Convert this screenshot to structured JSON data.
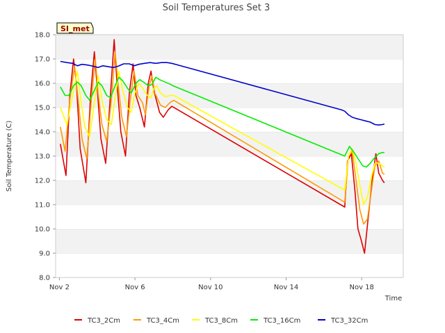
{
  "chart_data": {
    "type": "line",
    "title": "Soil Temperatures Set 3",
    "xlabel": "Time",
    "ylabel": "Soil Temperature (C)",
    "station_badge": "SI_met",
    "x_ticks": [
      "Nov 2",
      "Nov 6",
      "Nov 10",
      "Nov 14",
      "Nov 18"
    ],
    "y_ticks": [
      "8.0",
      "9.0",
      "10.0",
      "11.0",
      "12.0",
      "13.0",
      "14.0",
      "15.0",
      "16.0",
      "17.0",
      "18.0"
    ],
    "xlim": [
      1.8,
      20.2
    ],
    "ylim": [
      8,
      18
    ],
    "grid": "horizontal bands",
    "legend_position": "bottom",
    "series": [
      {
        "name": "TC3_2Cm",
        "color": "#dd0000",
        "points": [
          [
            2.05,
            13.5
          ],
          [
            2.35,
            12.2
          ],
          [
            2.55,
            15.5
          ],
          [
            2.75,
            17.0
          ],
          [
            2.9,
            16.0
          ],
          [
            3.1,
            13.3
          ],
          [
            3.4,
            11.9
          ],
          [
            3.65,
            15.5
          ],
          [
            3.85,
            17.3
          ],
          [
            4.0,
            15.8
          ],
          [
            4.2,
            13.7
          ],
          [
            4.45,
            12.7
          ],
          [
            4.7,
            15.5
          ],
          [
            4.9,
            17.8
          ],
          [
            5.05,
            16.0
          ],
          [
            5.25,
            14.0
          ],
          [
            5.5,
            13.0
          ],
          [
            5.7,
            15.6
          ],
          [
            5.9,
            16.8
          ],
          [
            6.05,
            15.5
          ],
          [
            6.25,
            15.0
          ],
          [
            6.5,
            14.2
          ],
          [
            6.7,
            16.0
          ],
          [
            6.85,
            16.5
          ],
          [
            7.0,
            15.7
          ],
          [
            7.3,
            14.8
          ],
          [
            7.5,
            14.6
          ],
          [
            7.75,
            14.9
          ],
          [
            7.95,
            15.05
          ],
          [
            17.1,
            10.9
          ],
          [
            17.25,
            12.8
          ],
          [
            17.45,
            13.1
          ],
          [
            17.65,
            11.5
          ],
          [
            17.8,
            10.0
          ],
          [
            17.95,
            9.6
          ],
          [
            18.15,
            9.0
          ],
          [
            18.35,
            10.5
          ],
          [
            18.55,
            12.0
          ],
          [
            18.75,
            13.1
          ],
          [
            18.9,
            12.3
          ],
          [
            19.1,
            12.0
          ],
          [
            19.2,
            11.9
          ]
        ]
      },
      {
        "name": "TC3_4Cm",
        "color": "#ff9900",
        "points": [
          [
            2.05,
            14.2
          ],
          [
            2.3,
            13.2
          ],
          [
            2.55,
            15.3
          ],
          [
            2.8,
            16.7
          ],
          [
            3.0,
            15.3
          ],
          [
            3.2,
            13.7
          ],
          [
            3.45,
            12.9
          ],
          [
            3.7,
            15.4
          ],
          [
            3.9,
            17.0
          ],
          [
            4.05,
            15.6
          ],
          [
            4.25,
            14.3
          ],
          [
            4.5,
            13.6
          ],
          [
            4.75,
            15.3
          ],
          [
            4.95,
            17.3
          ],
          [
            5.1,
            16.0
          ],
          [
            5.3,
            14.6
          ],
          [
            5.55,
            13.8
          ],
          [
            5.75,
            15.3
          ],
          [
            5.95,
            16.5
          ],
          [
            6.15,
            15.5
          ],
          [
            6.4,
            15.2
          ],
          [
            6.55,
            14.7
          ],
          [
            6.75,
            15.9
          ],
          [
            6.9,
            16.3
          ],
          [
            7.05,
            15.6
          ],
          [
            7.35,
            15.1
          ],
          [
            7.6,
            15.0
          ],
          [
            7.85,
            15.2
          ],
          [
            8.05,
            15.3
          ],
          [
            17.1,
            11.1
          ],
          [
            17.3,
            13.0
          ],
          [
            17.5,
            13.2
          ],
          [
            17.7,
            12.0
          ],
          [
            17.9,
            10.8
          ],
          [
            18.1,
            10.2
          ],
          [
            18.3,
            10.4
          ],
          [
            18.5,
            11.5
          ],
          [
            18.7,
            12.6
          ],
          [
            18.9,
            12.8
          ],
          [
            19.1,
            12.3
          ],
          [
            19.2,
            12.25
          ]
        ]
      },
      {
        "name": "TC3_8Cm",
        "color": "#ffff00",
        "points": [
          [
            2.05,
            15.0
          ],
          [
            2.4,
            14.3
          ],
          [
            2.7,
            15.5
          ],
          [
            2.95,
            16.5
          ],
          [
            3.15,
            15.2
          ],
          [
            3.35,
            14.2
          ],
          [
            3.6,
            13.8
          ],
          [
            3.85,
            15.2
          ],
          [
            4.05,
            16.3
          ],
          [
            4.25,
            15.3
          ],
          [
            4.5,
            14.5
          ],
          [
            4.75,
            14.3
          ],
          [
            4.95,
            15.4
          ],
          [
            5.15,
            16.5
          ],
          [
            5.35,
            15.7
          ],
          [
            5.6,
            15.0
          ],
          [
            5.8,
            14.8
          ],
          [
            6.0,
            15.6
          ],
          [
            6.2,
            16.0
          ],
          [
            6.4,
            15.8
          ],
          [
            6.65,
            15.5
          ],
          [
            6.85,
            15.4
          ],
          [
            7.0,
            15.8
          ],
          [
            7.15,
            15.9
          ],
          [
            7.35,
            15.6
          ],
          [
            7.6,
            15.45
          ],
          [
            7.9,
            15.5
          ],
          [
            8.05,
            15.5
          ],
          [
            17.1,
            11.6
          ],
          [
            17.3,
            13.0
          ],
          [
            17.5,
            13.3
          ],
          [
            17.7,
            12.7
          ],
          [
            17.9,
            11.8
          ],
          [
            18.1,
            11.0
          ],
          [
            18.3,
            11.3
          ],
          [
            18.5,
            12.1
          ],
          [
            18.7,
            12.7
          ],
          [
            18.9,
            12.7
          ],
          [
            19.1,
            12.6
          ],
          [
            19.2,
            12.55
          ]
        ]
      },
      {
        "name": "TC3_16Cm",
        "color": "#00ee00",
        "points": [
          [
            2.05,
            15.85
          ],
          [
            2.3,
            15.5
          ],
          [
            2.5,
            15.5
          ],
          [
            2.75,
            15.9
          ],
          [
            2.95,
            16.05
          ],
          [
            3.15,
            15.9
          ],
          [
            3.4,
            15.5
          ],
          [
            3.6,
            15.3
          ],
          [
            3.85,
            15.7
          ],
          [
            4.05,
            16.05
          ],
          [
            4.25,
            15.9
          ],
          [
            4.5,
            15.5
          ],
          [
            4.7,
            15.4
          ],
          [
            4.95,
            15.9
          ],
          [
            5.15,
            16.25
          ],
          [
            5.35,
            16.1
          ],
          [
            5.6,
            15.8
          ],
          [
            5.8,
            15.6
          ],
          [
            6.05,
            16.0
          ],
          [
            6.25,
            16.15
          ],
          [
            6.45,
            16.05
          ],
          [
            6.7,
            15.9
          ],
          [
            6.9,
            15.95
          ],
          [
            7.1,
            16.25
          ],
          [
            7.3,
            16.15
          ],
          [
            7.6,
            16.05
          ],
          [
            7.9,
            15.95
          ],
          [
            8.0,
            15.9
          ],
          [
            17.1,
            13.0
          ],
          [
            17.35,
            13.4
          ],
          [
            17.55,
            13.2
          ],
          [
            17.8,
            12.9
          ],
          [
            18.05,
            12.6
          ],
          [
            18.25,
            12.55
          ],
          [
            18.45,
            12.7
          ],
          [
            18.65,
            12.9
          ],
          [
            18.9,
            13.1
          ],
          [
            19.1,
            13.15
          ],
          [
            19.2,
            13.15
          ]
        ]
      },
      {
        "name": "TC3_32Cm",
        "color": "#0000cc",
        "points": [
          [
            2.05,
            16.9
          ],
          [
            2.4,
            16.85
          ],
          [
            2.7,
            16.82
          ],
          [
            2.95,
            16.72
          ],
          [
            3.2,
            16.78
          ],
          [
            3.5,
            16.75
          ],
          [
            3.8,
            16.7
          ],
          [
            4.05,
            16.65
          ],
          [
            4.3,
            16.72
          ],
          [
            4.6,
            16.68
          ],
          [
            4.85,
            16.65
          ],
          [
            5.1,
            16.7
          ],
          [
            5.4,
            16.8
          ],
          [
            5.7,
            16.8
          ],
          [
            5.95,
            16.72
          ],
          [
            6.2,
            16.78
          ],
          [
            6.5,
            16.82
          ],
          [
            6.8,
            16.85
          ],
          [
            7.1,
            16.82
          ],
          [
            7.4,
            16.85
          ],
          [
            7.7,
            16.85
          ],
          [
            7.95,
            16.82
          ],
          [
            16.95,
            14.9
          ],
          [
            17.1,
            14.85
          ],
          [
            17.3,
            14.7
          ],
          [
            17.5,
            14.6
          ],
          [
            17.7,
            14.55
          ],
          [
            17.95,
            14.5
          ],
          [
            18.2,
            14.45
          ],
          [
            18.45,
            14.4
          ],
          [
            18.7,
            14.3
          ],
          [
            18.9,
            14.28
          ],
          [
            19.1,
            14.3
          ],
          [
            19.2,
            14.32
          ]
        ]
      }
    ]
  }
}
